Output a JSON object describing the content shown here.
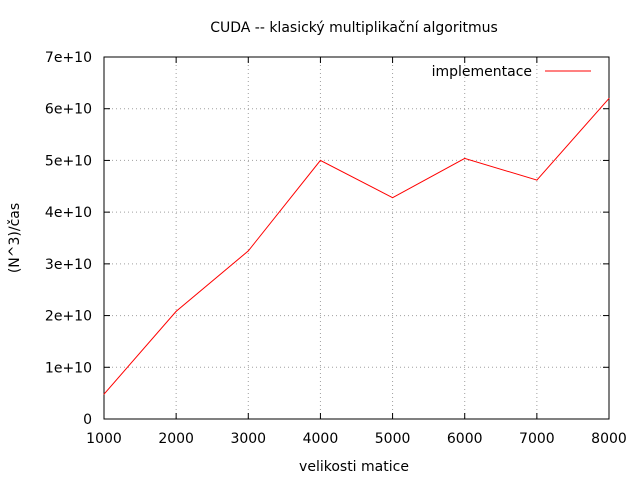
{
  "chart_data": {
    "type": "line",
    "title": "CUDA -- klasický multiplikační algoritmus",
    "xlabel": "velikosti matice",
    "ylabel": "(N^3)/čas",
    "xlim": [
      1000,
      8000
    ],
    "ylim": [
      0,
      70000000000
    ],
    "x_ticks": [
      1000,
      2000,
      3000,
      4000,
      5000,
      6000,
      7000,
      8000
    ],
    "x_tick_labels": [
      "1000",
      "2000",
      "3000",
      "4000",
      "5000",
      "6000",
      "7000",
      "8000"
    ],
    "y_ticks": [
      0,
      10000000000,
      20000000000,
      30000000000,
      40000000000,
      50000000000,
      60000000000,
      70000000000
    ],
    "y_tick_labels": [
      "0",
      "1e+10",
      "2e+10",
      "3e+10",
      "4e+10",
      "5e+10",
      "6e+10",
      "7e+10"
    ],
    "grid": true,
    "legend_position": "top-right",
    "series": [
      {
        "name": "implementace",
        "color": "#ff0000",
        "x": [
          1000,
          2000,
          3000,
          4000,
          5000,
          6000,
          7000,
          8000
        ],
        "values": [
          4800000000,
          20800000000,
          32500000000,
          50000000000,
          42800000000,
          50400000000,
          46200000000,
          62000000000
        ]
      }
    ]
  }
}
